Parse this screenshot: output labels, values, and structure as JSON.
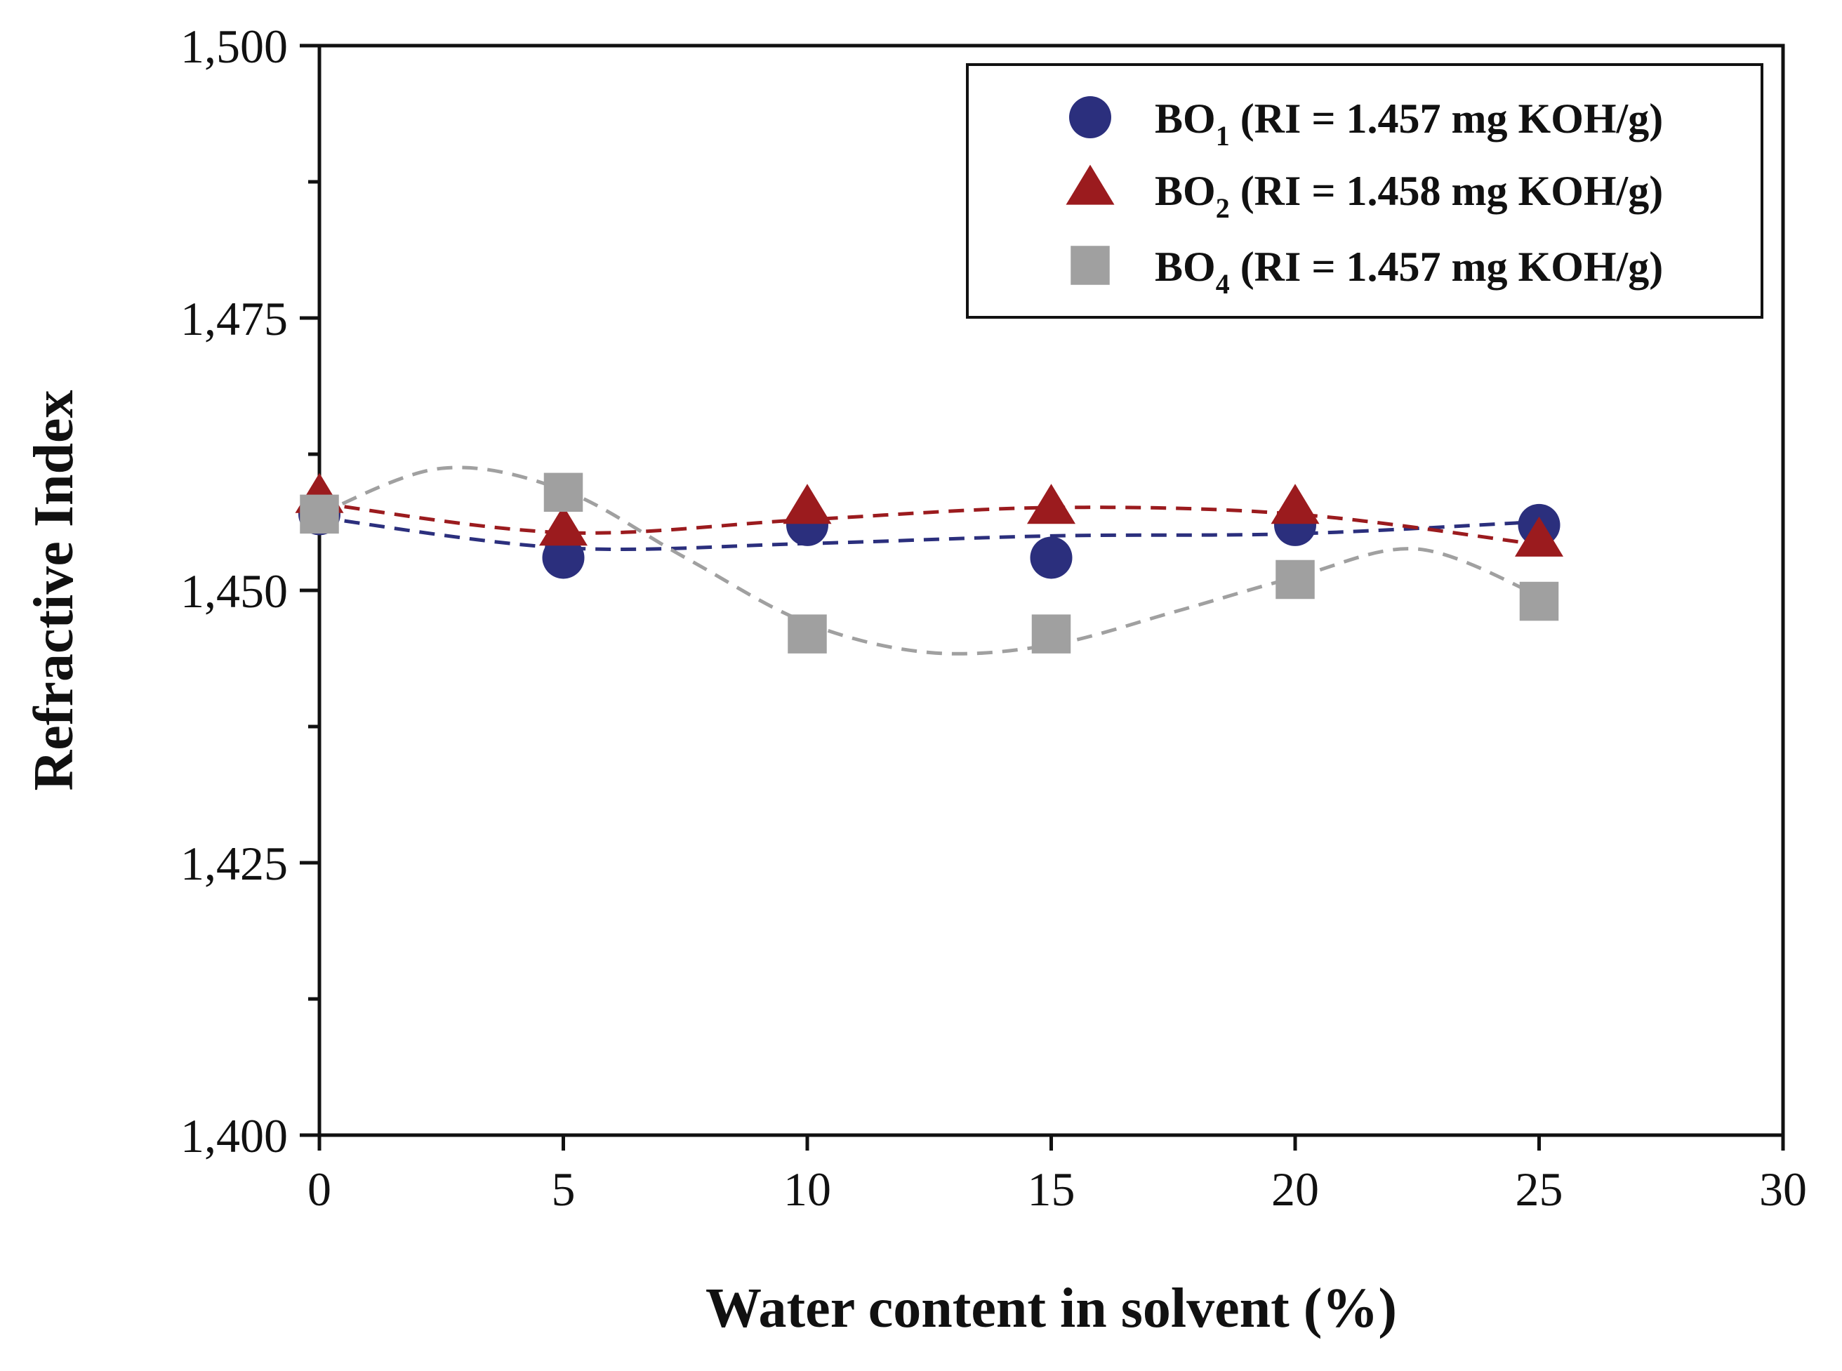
{
  "chart_data": {
    "type": "scatter",
    "title": "",
    "xlabel": "Water content in solvent (%)",
    "ylabel": "Refractive Index",
    "xlim": [
      0,
      30
    ],
    "ylim": [
      1.4,
      1.5
    ],
    "x_ticks": [
      0,
      5,
      10,
      15,
      20,
      25,
      30
    ],
    "x_tick_labels": [
      "0",
      "5",
      "10",
      "15",
      "20",
      "25",
      "30"
    ],
    "y_ticks": [
      1.4,
      1.425,
      1.45,
      1.475,
      1.5
    ],
    "y_tick_labels": [
      "1,400",
      "1,425",
      "1,450",
      "1,475",
      "1,500"
    ],
    "y_minor_ticks": [
      1.4125,
      1.4375,
      1.4625,
      1.4875
    ],
    "grid": false,
    "legend_position": "top-right",
    "series": [
      {
        "name": "BO1 (RI = 1.457 mg KOH/g)",
        "legend_prefix": "BO",
        "legend_sub": "1",
        "legend_rest": " (RI = 1.457 mg KOH/g)",
        "marker": "circle",
        "color": "#2b2f7d",
        "x": [
          0,
          5,
          10,
          15,
          20,
          25
        ],
        "y": [
          1.457,
          1.453,
          1.456,
          1.453,
          1.456,
          1.456
        ],
        "fit_curve": {
          "x": [
            0,
            5,
            10,
            15,
            20,
            25
          ],
          "y": [
            1.4567,
            1.4539,
            1.4543,
            1.455,
            1.4552,
            1.4563
          ]
        }
      },
      {
        "name": "BO2 (RI = 1.458 mg KOH/g)",
        "legend_prefix": "BO",
        "legend_sub": "2",
        "legend_rest": " (RI = 1.458 mg KOH/g)",
        "marker": "triangle",
        "color": "#9b1b1e",
        "x": [
          0,
          5,
          10,
          15,
          20,
          25
        ],
        "y": [
          1.4585,
          1.4555,
          1.4575,
          1.4575,
          1.4575,
          1.4545
        ],
        "fit_curve": {
          "x": [
            0,
            5,
            10,
            15,
            20,
            25
          ],
          "y": [
            1.458,
            1.4553,
            1.4565,
            1.4576,
            1.457,
            1.4542
          ]
        }
      },
      {
        "name": "BO4 (RI = 1.457 mg KOH/g)",
        "legend_prefix": "BO",
        "legend_sub": "4",
        "legend_rest": " (RI = 1.457 mg KOH/g)",
        "marker": "square",
        "color": "#a0a0a0",
        "x": [
          0,
          5,
          10,
          15,
          20,
          25
        ],
        "y": [
          1.457,
          1.459,
          1.446,
          1.446,
          1.451,
          1.449
        ],
        "fit_curve": {
          "x": [
            0,
            2.5,
            5,
            7.5,
            10,
            12.5,
            15,
            17.5,
            20,
            22.5,
            25
          ],
          "y": [
            1.457,
            1.4612,
            1.4592,
            1.453,
            1.447,
            1.4443,
            1.445,
            1.448,
            1.4512,
            1.4538,
            1.4495
          ]
        }
      }
    ]
  }
}
